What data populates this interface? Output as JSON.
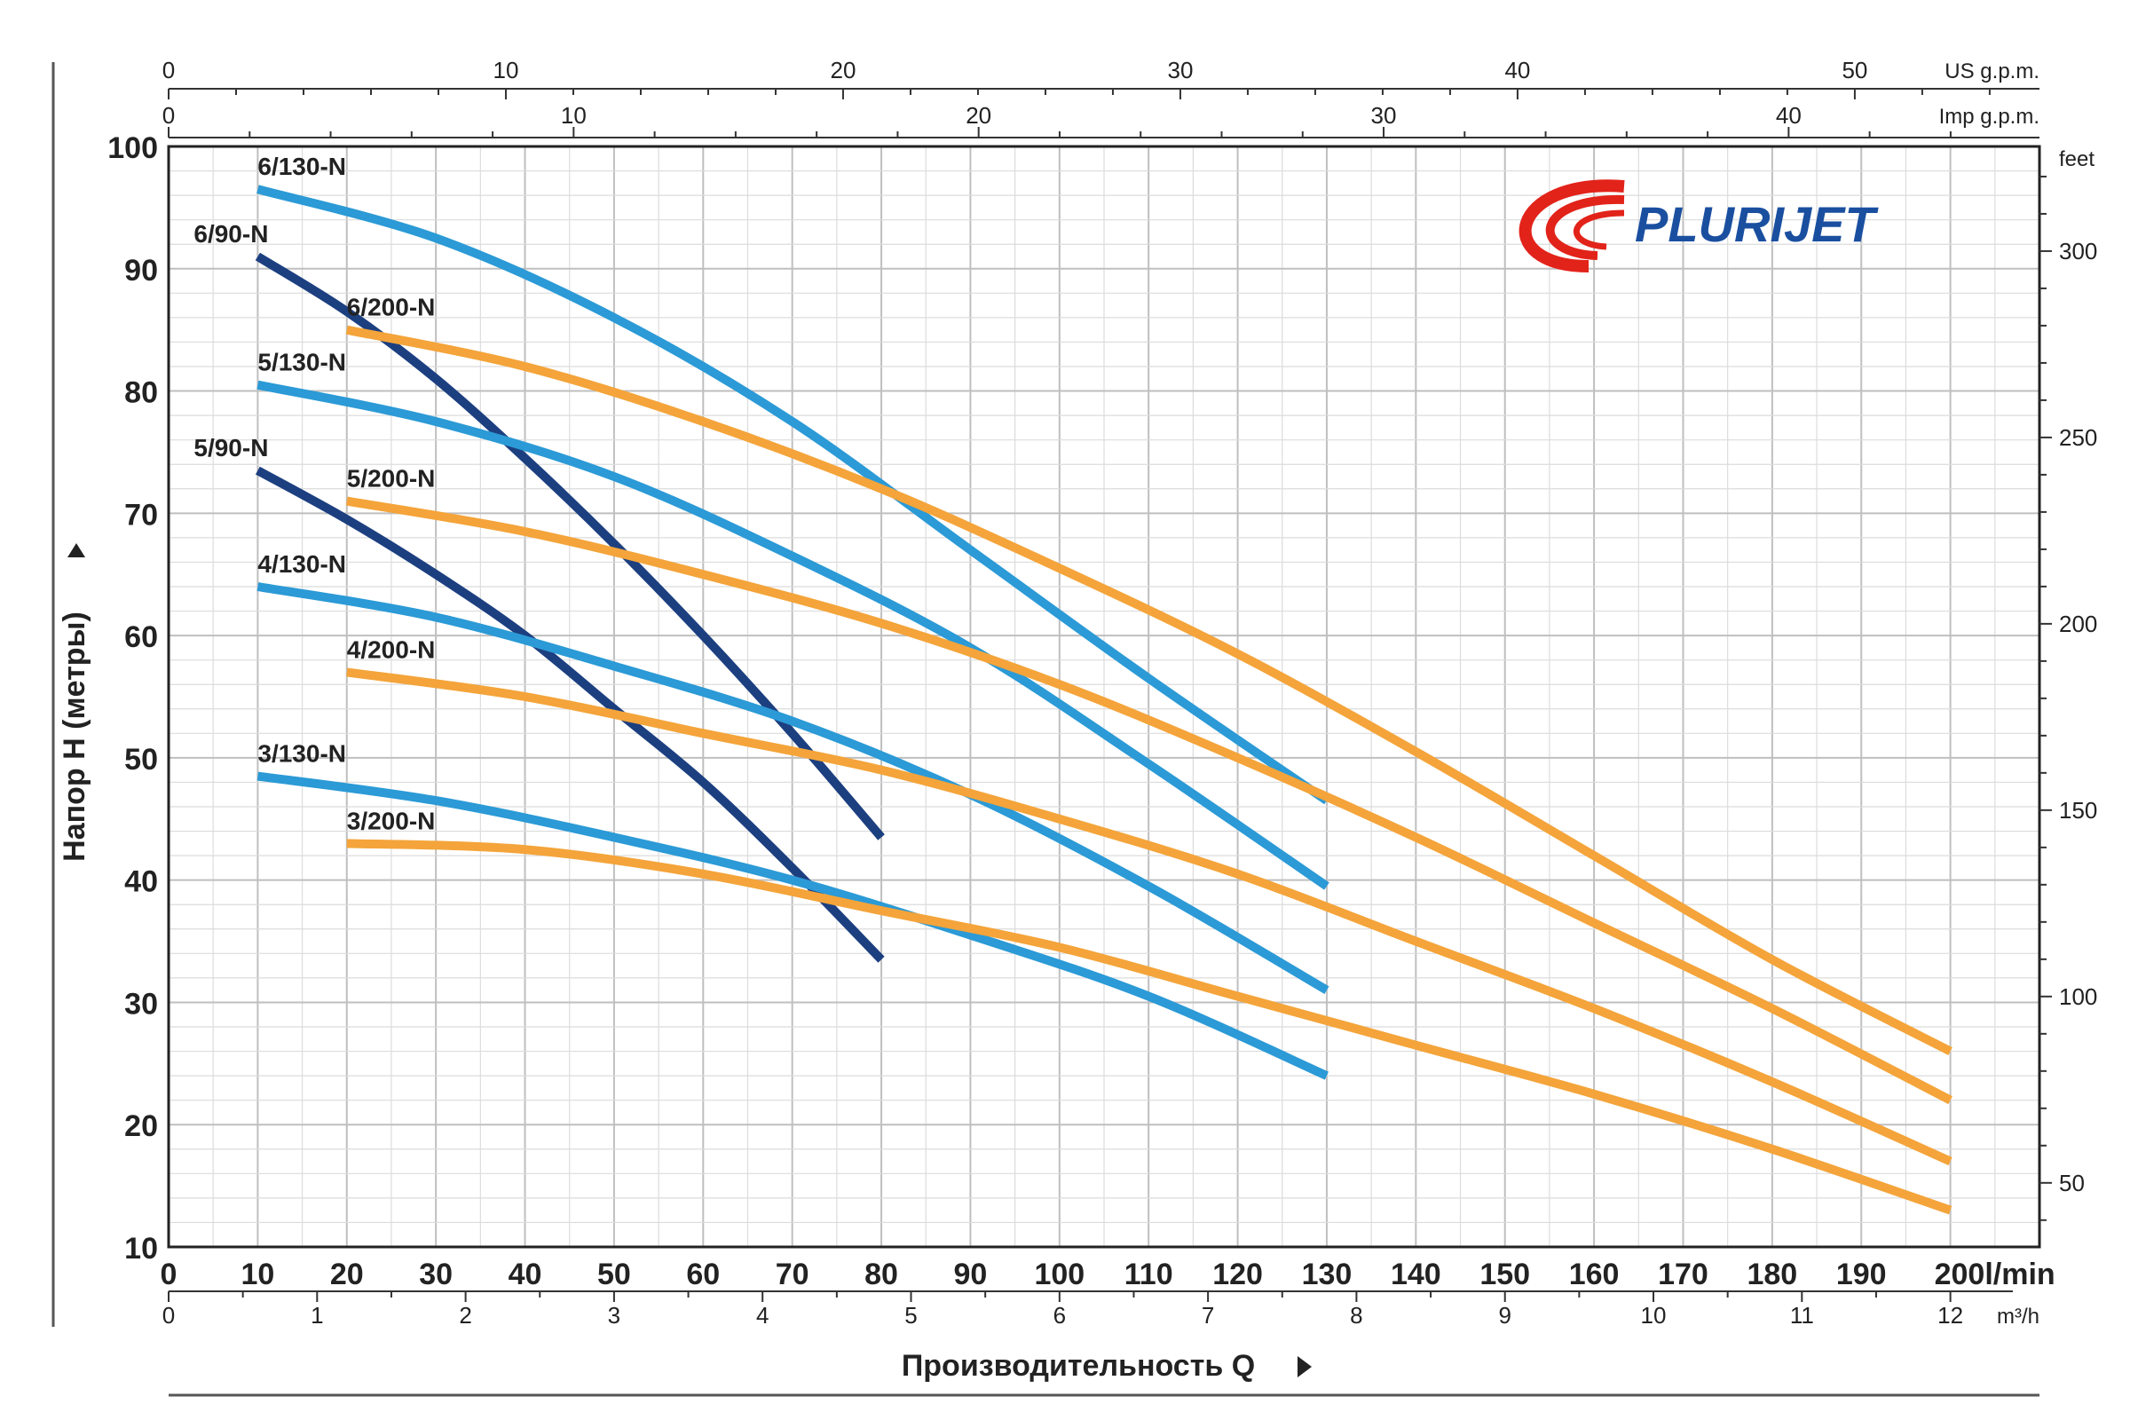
{
  "logo": {
    "text": "PLURIJET"
  },
  "chart_data": {
    "type": "line",
    "title": "",
    "ylabel": "Напор H (метры)",
    "xlabel": "Производительность Q",
    "x_unit_main": "l/min",
    "xlim": [
      0,
      210
    ],
    "ylim": [
      10,
      100
    ],
    "x_ticks": [
      0,
      10,
      20,
      30,
      40,
      50,
      60,
      70,
      80,
      90,
      100,
      110,
      120,
      130,
      140,
      150,
      160,
      170,
      180,
      190,
      200
    ],
    "y_ticks": [
      10,
      20,
      30,
      40,
      50,
      60,
      70,
      80,
      90,
      100
    ],
    "grid": true,
    "secondary_axes": {
      "us_gpm": {
        "label": "US g.p.m.",
        "ticks": [
          0,
          10,
          20,
          30,
          40,
          50
        ]
      },
      "imp_gpm": {
        "label": "Imp g.p.m.",
        "ticks": [
          0,
          10,
          20,
          30,
          40
        ]
      },
      "m3h": {
        "label": "m³/h",
        "ticks": [
          0,
          1,
          2,
          3,
          4,
          5,
          6,
          7,
          8,
          9,
          10,
          11,
          12
        ]
      },
      "feet": {
        "label": "feet",
        "ticks": [
          50,
          100,
          150,
          200,
          250,
          300
        ]
      }
    },
    "series": [
      {
        "name": "6/130-N",
        "color": "#2b9ad6",
        "x": [
          10,
          30,
          50,
          70,
          90,
          110,
          130
        ],
        "y": [
          96.5,
          92.5,
          86,
          77.5,
          67,
          56.5,
          46.5
        ]
      },
      {
        "name": "6/90-N",
        "color": "#1c3f80",
        "x": [
          10,
          20,
          30,
          40,
          50,
          60,
          70,
          80
        ],
        "y": [
          91,
          86.5,
          81,
          74.5,
          67.5,
          60,
          52,
          43.5
        ]
      },
      {
        "name": "6/200-N",
        "color": "#f4a43a",
        "x": [
          20,
          40,
          60,
          80,
          100,
          120,
          140,
          160,
          180,
          200
        ],
        "y": [
          85,
          82,
          77.5,
          72,
          65.5,
          58.5,
          50.5,
          42,
          33.5,
          26
        ]
      },
      {
        "name": "5/130-N",
        "color": "#2b9ad6",
        "x": [
          10,
          30,
          50,
          70,
          90,
          110,
          130
        ],
        "y": [
          80.5,
          77.5,
          73,
          66.5,
          59,
          49.5,
          39.5
        ]
      },
      {
        "name": "5/90-N",
        "color": "#1c3f80",
        "x": [
          10,
          20,
          30,
          40,
          50,
          60,
          70,
          80
        ],
        "y": [
          73.5,
          69.5,
          65,
          60,
          54,
          48,
          41,
          33.5
        ]
      },
      {
        "name": "5/200-N",
        "color": "#f4a43a",
        "x": [
          20,
          40,
          60,
          80,
          100,
          120,
          140,
          160,
          180,
          200
        ],
        "y": [
          71,
          68.5,
          65,
          61,
          56,
          50,
          43.5,
          36.5,
          29.5,
          22
        ]
      },
      {
        "name": "4/130-N",
        "color": "#2b9ad6",
        "x": [
          10,
          30,
          50,
          70,
          90,
          110,
          130
        ],
        "y": [
          64,
          61.5,
          57.5,
          53,
          47,
          39.5,
          31
        ]
      },
      {
        "name": "4/200-N",
        "color": "#f4a43a",
        "x": [
          20,
          40,
          60,
          80,
          100,
          120,
          140,
          160,
          180,
          200
        ],
        "y": [
          57,
          55,
          52,
          49,
          45,
          40.5,
          35,
          29.5,
          23.5,
          17
        ]
      },
      {
        "name": "3/130-N",
        "color": "#2b9ad6",
        "x": [
          10,
          30,
          50,
          70,
          90,
          110,
          130
        ],
        "y": [
          48.5,
          46.5,
          43.5,
          40,
          35.5,
          30.5,
          24
        ]
      },
      {
        "name": "3/200-N",
        "color": "#f4a43a",
        "x": [
          20,
          40,
          60,
          80,
          100,
          120,
          140,
          160,
          180,
          200
        ],
        "y": [
          43,
          42.5,
          40.5,
          37.5,
          34.5,
          30.5,
          26.5,
          22.5,
          18,
          13
        ]
      }
    ]
  }
}
